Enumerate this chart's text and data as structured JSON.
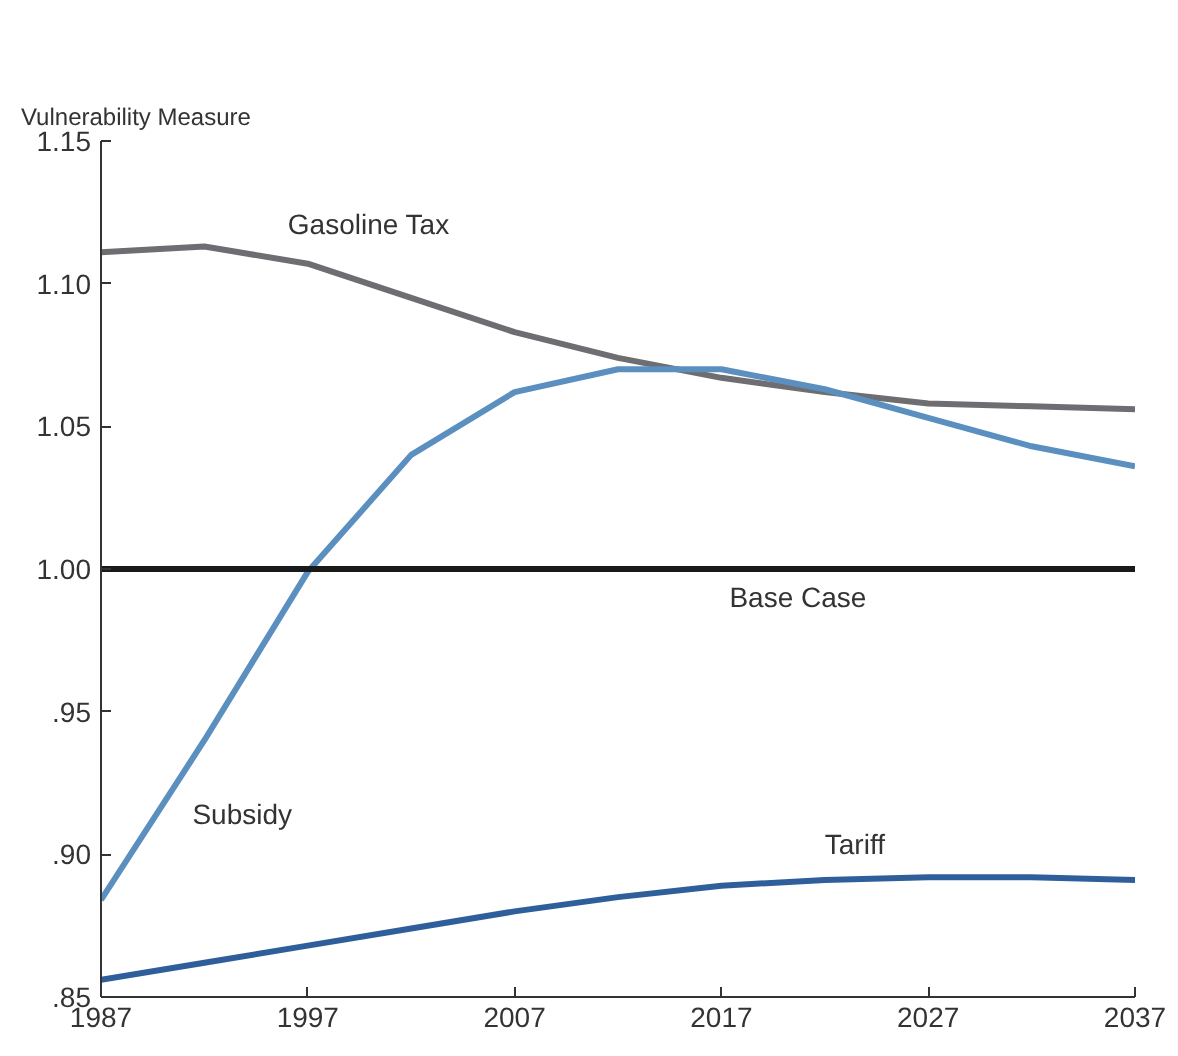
{
  "chart_data": {
    "type": "line",
    "ylabel": "Vulnerability Measure",
    "x": [
      1987,
      1992,
      1997,
      2002,
      2007,
      2012,
      2017,
      2022,
      2027,
      2032,
      2037
    ],
    "series": [
      {
        "name": "Gasoline Tax",
        "color": "#6e6e72",
        "values": [
          1.111,
          1.113,
          1.107,
          1.095,
          1.083,
          1.074,
          1.067,
          1.062,
          1.058,
          1.057,
          1.056
        ]
      },
      {
        "name": "Subsidy",
        "color": "#5b8fc0",
        "values": [
          0.884,
          0.94,
          0.999,
          1.04,
          1.062,
          1.07,
          1.07,
          1.063,
          1.053,
          1.043,
          1.036
        ]
      },
      {
        "name": "Base Case",
        "color": "#1a1a1a",
        "values": [
          1.0,
          1.0,
          1.0,
          1.0,
          1.0,
          1.0,
          1.0,
          1.0,
          1.0,
          1.0,
          1.0
        ]
      },
      {
        "name": "Tariff",
        "color": "#2f5f9a",
        "values": [
          0.856,
          0.862,
          0.868,
          0.874,
          0.88,
          0.885,
          0.889,
          0.891,
          0.892,
          0.892,
          0.891
        ]
      }
    ],
    "xlim": [
      1987,
      2037
    ],
    "xticks": [
      1987,
      1997,
      2007,
      2017,
      2027,
      2037
    ],
    "ylim": [
      0.85,
      1.15
    ],
    "yticks": [
      {
        "value": 0.85,
        "label": ".85"
      },
      {
        "value": 0.9,
        "label": ".90"
      },
      {
        "value": 0.95,
        "label": ".95"
      },
      {
        "value": 1.0,
        "label": "1.00"
      },
      {
        "value": 1.05,
        "label": "1.05"
      },
      {
        "value": 1.1,
        "label": "1.10"
      },
      {
        "value": 1.15,
        "label": "1.15"
      }
    ],
    "grid": false,
    "marker": "none",
    "line_style": "solid"
  }
}
